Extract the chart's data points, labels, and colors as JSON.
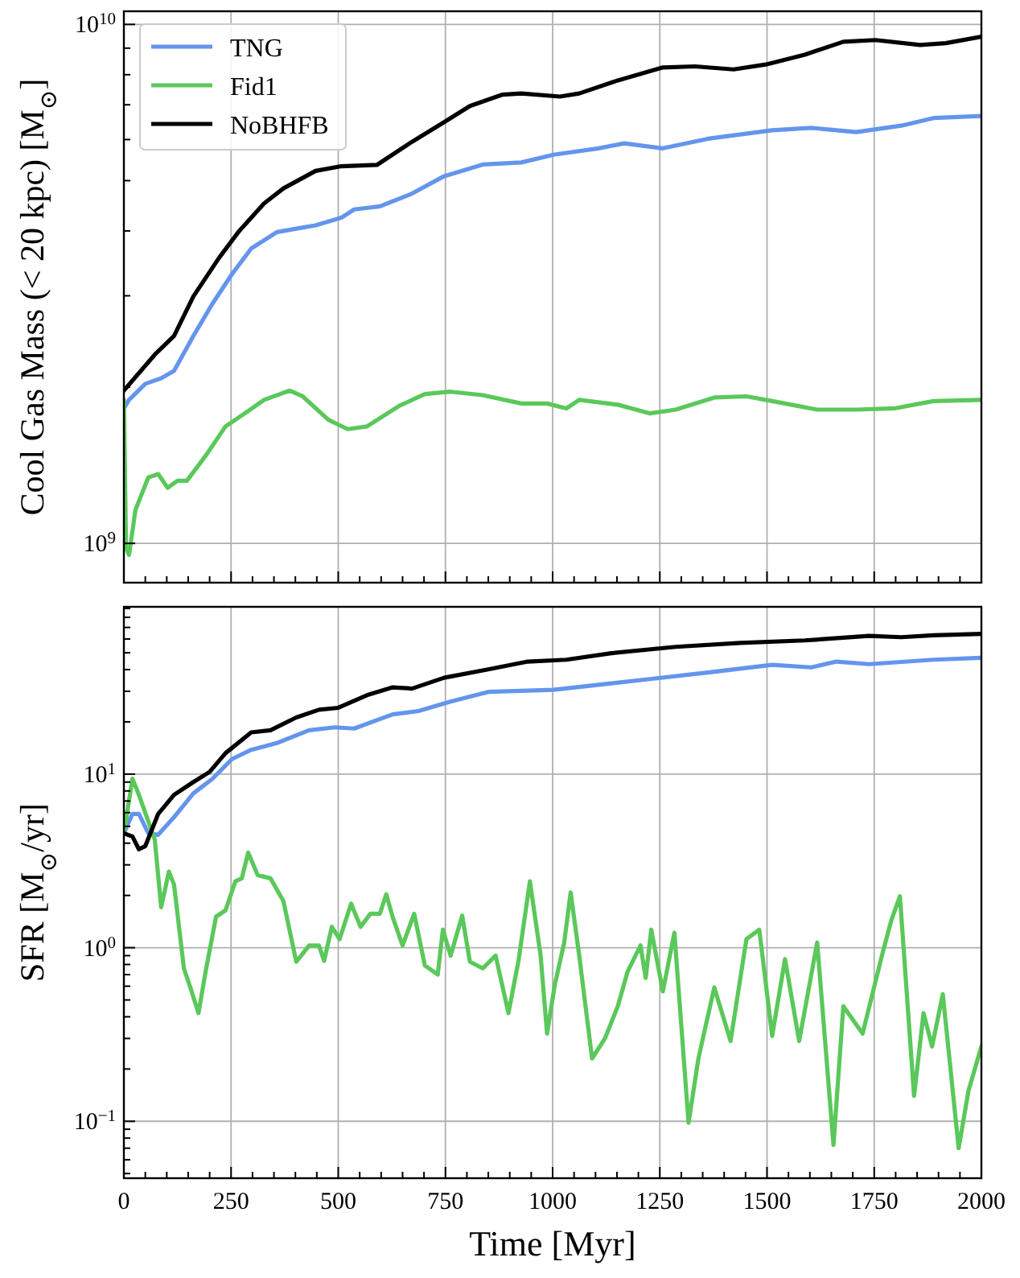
{
  "chart_data": [
    {
      "type": "line",
      "ylabel": "Cool Gas Mass (< 20 kpc) [M$_{⊙}$]",
      "log": "y",
      "grid": true,
      "legend": "top left",
      "tick_labels": "y",
      "line_style": "solid",
      "marker": "none",
      "xlim": [
        0,
        2000
      ],
      "ylim": [
        840000000,
        10600000000
      ],
      "xticks": [
        0,
        {
          "value": 50,
          "label": null
        },
        {
          "value": 100,
          "label": null
        },
        {
          "value": 150,
          "label": null
        },
        {
          "value": 200,
          "label": null
        },
        250,
        {
          "value": 300,
          "label": null
        },
        {
          "value": 350,
          "label": null
        },
        {
          "value": 400,
          "label": null
        },
        {
          "value": 450,
          "label": null
        },
        500,
        {
          "value": 550,
          "label": null
        },
        {
          "value": 600,
          "label": null
        },
        {
          "value": 650,
          "label": null
        },
        {
          "value": 700,
          "label": null
        },
        750,
        {
          "value": 800,
          "label": null
        },
        {
          "value": 850,
          "label": null
        },
        {
          "value": 900,
          "label": null
        },
        {
          "value": 950,
          "label": null
        },
        1000,
        {
          "value": 1050,
          "label": null
        },
        {
          "value": 1100,
          "label": null
        },
        {
          "value": 1150,
          "label": null
        },
        {
          "value": 1200,
          "label": null
        },
        1250,
        {
          "value": 1300,
          "label": null
        },
        {
          "value": 1350,
          "label": null
        },
        {
          "value": 1400,
          "label": null
        },
        {
          "value": 1450,
          "label": null
        },
        1500,
        {
          "value": 1550,
          "label": null
        },
        {
          "value": 1600,
          "label": null
        },
        {
          "value": 1650,
          "label": null
        },
        {
          "value": 1700,
          "label": null
        },
        1750,
        {
          "value": 1800,
          "label": null
        },
        {
          "value": 1850,
          "label": null
        },
        {
          "value": 1900,
          "label": null
        },
        {
          "value": 1950,
          "label": null
        },
        2000
      ],
      "yticks": [
        {
          "value": 1000000000,
          "label": "10$^{9}$"
        },
        {
          "value": 2000000000,
          "label": null
        },
        {
          "value": 3000000000,
          "label": null
        },
        {
          "value": 4000000000,
          "label": null
        },
        {
          "value": 5000000000,
          "label": null
        },
        {
          "value": 6000000000,
          "label": null
        },
        {
          "value": 7000000000,
          "label": null
        },
        {
          "value": 8000000000,
          "label": null
        },
        {
          "value": 9000000000,
          "label": null
        },
        {
          "value": 10000000000,
          "label": "10$^{10}$"
        }
      ],
      "series": [
        {
          "name": "TNG",
          "color": "#6495ed",
          "x": [
            0,
            12,
            50,
            87,
            117,
            162,
            207,
            252,
            297,
            357,
            402,
            447,
            507,
            537,
            597,
            672,
            747,
            837,
            927,
            1002,
            1107,
            1167,
            1257,
            1362,
            1512,
            1603,
            1708,
            1813,
            1888,
            2000
          ],
          "values": [
            1820000000.0,
            1890000000.0,
            2030000000.0,
            2080000000.0,
            2150000000.0,
            2510000000.0,
            2900000000.0,
            3300000000.0,
            3700000000.0,
            3980000000.0,
            4040000000.0,
            4100000000.0,
            4240000000.0,
            4400000000.0,
            4460000000.0,
            4720000000.0,
            5100000000.0,
            5370000000.0,
            5420000000.0,
            5610000000.0,
            5770000000.0,
            5900000000.0,
            5770000000.0,
            6020000000.0,
            6250000000.0,
            6320000000.0,
            6200000000.0,
            6380000000.0,
            6600000000.0,
            6660000000.0
          ]
        },
        {
          "name": "Fid1",
          "color": "#5ac85a",
          "x": [
            0,
            5,
            12,
            27,
            57,
            80,
            102,
            125,
            147,
            192,
            237,
            282,
            327,
            387,
            417,
            477,
            522,
            567,
            642,
            702,
            762,
            837,
            927,
            987,
            1032,
            1062,
            1152,
            1227,
            1287,
            1377,
            1452,
            1512,
            1617,
            1707,
            1797,
            1888,
            2000
          ],
          "values": [
            1890000000.0,
            980000000.0,
            950000000.0,
            1160000000.0,
            1340000000.0,
            1360000000.0,
            1280000000.0,
            1320000000.0,
            1320000000.0,
            1480000000.0,
            1680000000.0,
            1780000000.0,
            1890000000.0,
            1970000000.0,
            1920000000.0,
            1730000000.0,
            1660000000.0,
            1680000000.0,
            1840000000.0,
            1940000000.0,
            1960000000.0,
            1930000000.0,
            1860000000.0,
            1860000000.0,
            1820000000.0,
            1890000000.0,
            1850000000.0,
            1780000000.0,
            1810000000.0,
            1910000000.0,
            1920000000.0,
            1880000000.0,
            1810000000.0,
            1810000000.0,
            1820000000.0,
            1880000000.0,
            1890000000.0
          ]
        },
        {
          "name": "NoBHFB",
          "color": "#000000",
          "x": [
            0,
            72,
            117,
            162,
            222,
            267,
            327,
            372,
            447,
            507,
            590,
            672,
            747,
            807,
            882,
            927,
            1017,
            1062,
            1152,
            1257,
            1332,
            1422,
            1497,
            1588,
            1678,
            1753,
            1857,
            1917,
            2000
          ],
          "values": [
            1970000000.0,
            2310000000.0,
            2510000000.0,
            2990000000.0,
            3550000000.0,
            3980000000.0,
            4520000000.0,
            4830000000.0,
            5220000000.0,
            5330000000.0,
            5360000000.0,
            5940000000.0,
            6480000000.0,
            6960000000.0,
            7320000000.0,
            7360000000.0,
            7260000000.0,
            7360000000.0,
            7800000000.0,
            8260000000.0,
            8300000000.0,
            8190000000.0,
            8370000000.0,
            8740000000.0,
            9260000000.0,
            9330000000.0,
            9130000000.0,
            9200000000.0,
            9470000000.0
          ]
        }
      ]
    },
    {
      "type": "line",
      "xlabel": "Time [Myr]",
      "ylabel": "SFR [M$_{⊙}$/yr]",
      "log": "y",
      "grid": true,
      "line_style": "solid",
      "marker": "none",
      "xlim": [
        0,
        2000
      ],
      "ylim": [
        0.047,
        92
      ],
      "xticks": [
        0,
        {
          "value": 50,
          "label": null
        },
        {
          "value": 100,
          "label": null
        },
        {
          "value": 150,
          "label": null
        },
        {
          "value": 200,
          "label": null
        },
        250,
        {
          "value": 300,
          "label": null
        },
        {
          "value": 350,
          "label": null
        },
        {
          "value": 400,
          "label": null
        },
        {
          "value": 450,
          "label": null
        },
        500,
        {
          "value": 550,
          "label": null
        },
        {
          "value": 600,
          "label": null
        },
        {
          "value": 650,
          "label": null
        },
        {
          "value": 700,
          "label": null
        },
        750,
        {
          "value": 800,
          "label": null
        },
        {
          "value": 850,
          "label": null
        },
        {
          "value": 900,
          "label": null
        },
        {
          "value": 950,
          "label": null
        },
        1000,
        {
          "value": 1050,
          "label": null
        },
        {
          "value": 1100,
          "label": null
        },
        {
          "value": 1150,
          "label": null
        },
        {
          "value": 1200,
          "label": null
        },
        1250,
        {
          "value": 1300,
          "label": null
        },
        {
          "value": 1350,
          "label": null
        },
        {
          "value": 1400,
          "label": null
        },
        {
          "value": 1450,
          "label": null
        },
        1500,
        {
          "value": 1550,
          "label": null
        },
        {
          "value": 1600,
          "label": null
        },
        {
          "value": 1650,
          "label": null
        },
        {
          "value": 1700,
          "label": null
        },
        1750,
        {
          "value": 1800,
          "label": null
        },
        {
          "value": 1850,
          "label": null
        },
        {
          "value": 1900,
          "label": null
        },
        {
          "value": 1950,
          "label": null
        },
        2000
      ],
      "yticks": [
        {
          "value": 0.05,
          "label": null
        },
        {
          "value": 0.06,
          "label": null
        },
        {
          "value": 0.07,
          "label": null
        },
        {
          "value": 0.08,
          "label": null
        },
        {
          "value": 0.09,
          "label": null
        },
        {
          "value": 0.1,
          "label": "10$^{−1}$"
        },
        {
          "value": 0.2,
          "label": null
        },
        {
          "value": 0.3,
          "label": null
        },
        {
          "value": 0.4,
          "label": null
        },
        {
          "value": 0.5,
          "label": null
        },
        {
          "value": 0.6,
          "label": null
        },
        {
          "value": 0.7,
          "label": null
        },
        {
          "value": 0.8,
          "label": null
        },
        {
          "value": 0.9,
          "label": null
        },
        {
          "value": 1,
          "label": "10$^{0}$"
        },
        {
          "value": 2,
          "label": null
        },
        {
          "value": 3,
          "label": null
        },
        {
          "value": 4,
          "label": null
        },
        {
          "value": 5,
          "label": null
        },
        {
          "value": 6,
          "label": null
        },
        {
          "value": 7,
          "label": null
        },
        {
          "value": 8,
          "label": null
        },
        {
          "value": 9,
          "label": null
        },
        {
          "value": 10,
          "label": "10$^{1}$"
        },
        {
          "value": 20,
          "label": null
        },
        {
          "value": 30,
          "label": null
        },
        {
          "value": 40,
          "label": null
        },
        {
          "value": 50,
          "label": null
        },
        {
          "value": 60,
          "label": null
        },
        {
          "value": 70,
          "label": null
        },
        {
          "value": 80,
          "label": null
        },
        {
          "value": 90,
          "label": null
        }
      ],
      "series": [
        {
          "color": "#6495ed",
          "x": [
            0,
            20,
            35,
            57,
            80,
            117,
            162,
            207,
            252,
            297,
            357,
            432,
            492,
            537,
            627,
            687,
            762,
            852,
            942,
            1002,
            1137,
            1227,
            1362,
            1512,
            1603,
            1662,
            1738,
            1888,
            2000
          ],
          "values": [
            4.56,
            5.9,
            5.9,
            4.56,
            4.47,
            5.65,
            7.74,
            9.42,
            12.2,
            13.8,
            15.1,
            17.9,
            18.6,
            18.3,
            22.1,
            23.1,
            26.2,
            29.8,
            30.3,
            30.6,
            33.3,
            35.3,
            38.5,
            42.6,
            41.2,
            44.5,
            43.0,
            45.6,
            46.8
          ]
        },
        {
          "color": "#5ac85a",
          "x": [
            0,
            20,
            35,
            72,
            87,
            105,
            117,
            140,
            155,
            174,
            192,
            215,
            237,
            260,
            275,
            290,
            312,
            342,
            372,
            402,
            432,
            455,
            467,
            485,
            503,
            530,
            552,
            575,
            597,
            612,
            627,
            650,
            677,
            702,
            732,
            744,
            762,
            789,
            807,
            837,
            867,
            897,
            920,
            947,
            972,
            987,
            1005,
            1027,
            1042,
            1062,
            1092,
            1122,
            1152,
            1175,
            1205,
            1217,
            1230,
            1257,
            1284,
            1317,
            1340,
            1377,
            1415,
            1452,
            1482,
            1512,
            1542,
            1575,
            1617,
            1655,
            1678,
            1723,
            1768,
            1790,
            1810,
            1843,
            1865,
            1885,
            1910,
            1947,
            1970,
            2000
          ],
          "values": [
            4.56,
            9.4,
            7.6,
            4.2,
            1.71,
            2.74,
            2.31,
            0.76,
            0.59,
            0.42,
            0.76,
            1.51,
            1.64,
            2.41,
            2.51,
            3.53,
            2.62,
            2.51,
            1.86,
            0.83,
            1.03,
            1.03,
            0.84,
            1.32,
            1.12,
            1.79,
            1.32,
            1.57,
            1.57,
            2.03,
            1.5,
            1.03,
            1.57,
            0.79,
            0.7,
            1.27,
            0.9,
            1.53,
            0.83,
            0.76,
            0.9,
            0.42,
            0.83,
            2.41,
            0.9,
            0.32,
            0.61,
            1.07,
            2.08,
            0.9,
            0.23,
            0.3,
            0.46,
            0.73,
            1.03,
            0.67,
            1.27,
            0.56,
            1.22,
            0.098,
            0.23,
            0.59,
            0.29,
            1.12,
            1.27,
            0.31,
            0.86,
            0.29,
            1.07,
            0.073,
            0.46,
            0.32,
            0.9,
            1.44,
            1.98,
            0.14,
            0.42,
            0.27,
            0.54,
            0.07,
            0.15,
            0.27
          ]
        },
        {
          "color": "#000000",
          "x": [
            0,
            20,
            35,
            50,
            80,
            117,
            162,
            200,
            237,
            297,
            342,
            402,
            455,
            500,
            567,
            627,
            672,
            747,
            852,
            942,
            1032,
            1137,
            1287,
            1437,
            1588,
            1738,
            1813,
            1888,
            2000
          ],
          "values": [
            4.56,
            4.37,
            3.69,
            3.85,
            5.9,
            7.6,
            9.0,
            10.3,
            13.2,
            17.4,
            17.9,
            21.2,
            23.5,
            24.1,
            28.5,
            31.6,
            31.1,
            35.9,
            40.2,
            44.5,
            45.6,
            49.7,
            54.1,
            57.0,
            58.9,
            62.5,
            61.5,
            63.1,
            64.2
          ]
        }
      ]
    }
  ]
}
